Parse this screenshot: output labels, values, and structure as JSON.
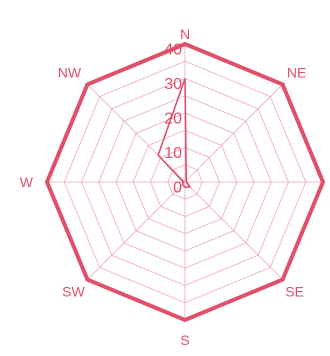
{
  "chart_data": {
    "type": "radar",
    "title": "",
    "categories": [
      "N",
      "NE",
      "E",
      "SE",
      "S",
      "SW",
      "W",
      "NW"
    ],
    "radial_ticks": [
      "0",
      "10",
      "20",
      "30",
      "40"
    ],
    "rlim": [
      0,
      40
    ],
    "grid": true,
    "series": [
      {
        "values": [
          30,
          0.5,
          0.5,
          2,
          1.5,
          1,
          0.5,
          11
        ]
      }
    ],
    "colors": {
      "accent": "#e0506a",
      "grid": "#f0a8b6",
      "background": "#ffffff"
    }
  }
}
